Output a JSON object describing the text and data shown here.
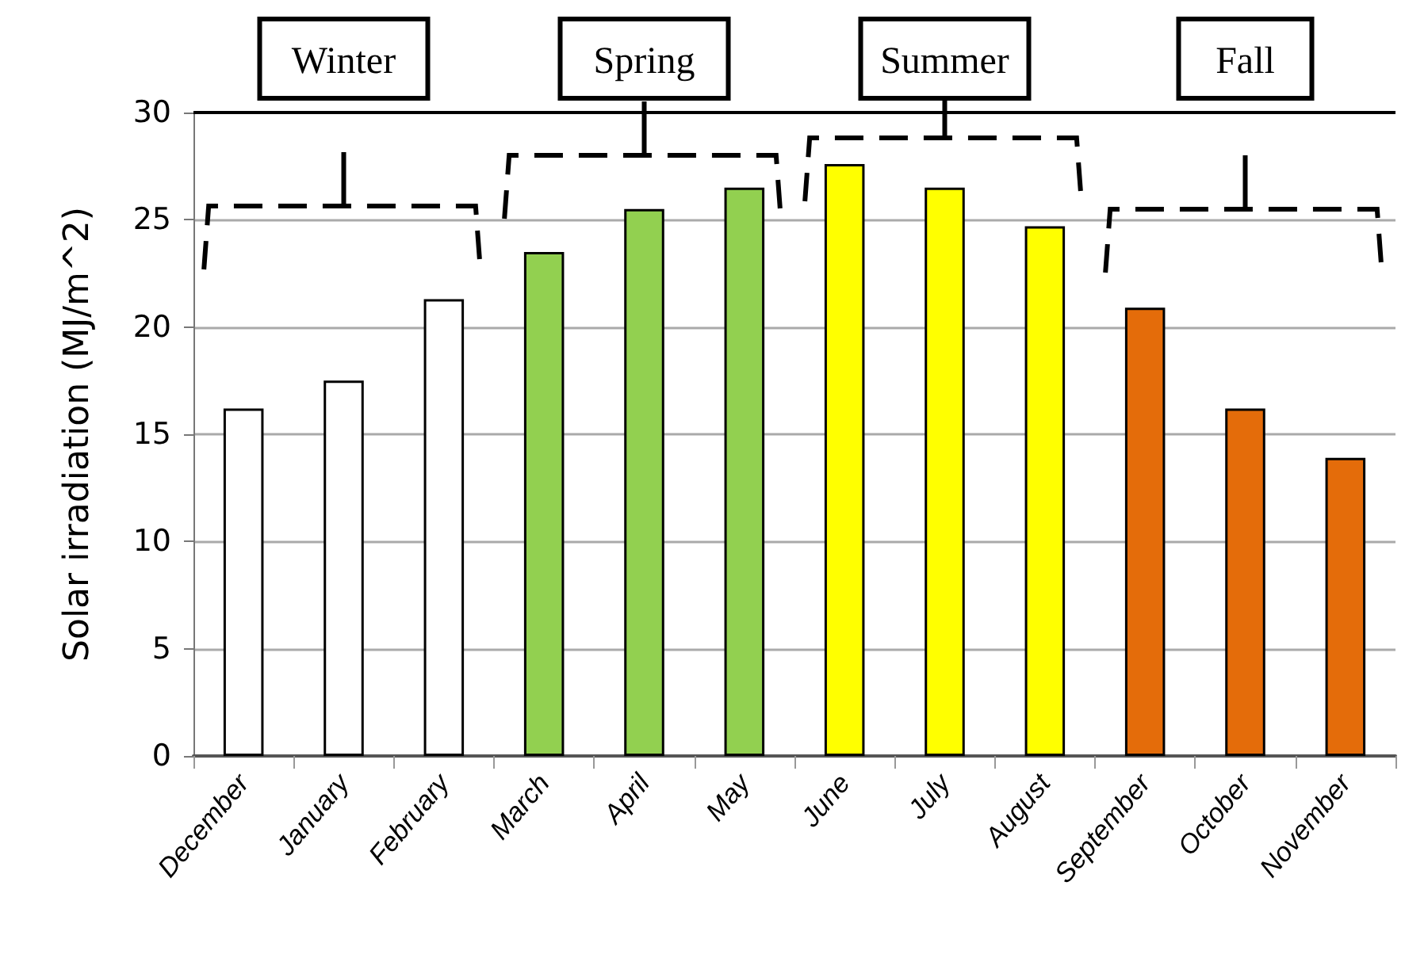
{
  "chart_data": {
    "type": "bar",
    "ylabel": "Solar irradiation (MJ/m^2)",
    "categories": [
      "December",
      "January",
      "February",
      "March",
      "April",
      "May",
      "June",
      "July",
      "August",
      "September",
      "October",
      "November"
    ],
    "values": [
      16.2,
      17.5,
      21.3,
      23.5,
      25.5,
      26.5,
      27.6,
      26.5,
      24.7,
      20.9,
      16.2,
      13.9
    ],
    "colors": [
      "#ffffff",
      "#ffffff",
      "#ffffff",
      "#92d050",
      "#92d050",
      "#92d050",
      "#ffff00",
      "#ffff00",
      "#ffff00",
      "#e46c0a",
      "#e46c0a",
      "#e46c0a"
    ],
    "ylim": [
      0,
      30
    ],
    "yticks": [
      0,
      5,
      10,
      15,
      20,
      25,
      30
    ],
    "grid": "y",
    "annotations": [
      "Winter",
      "Spring",
      "Summer",
      "Fall"
    ]
  }
}
